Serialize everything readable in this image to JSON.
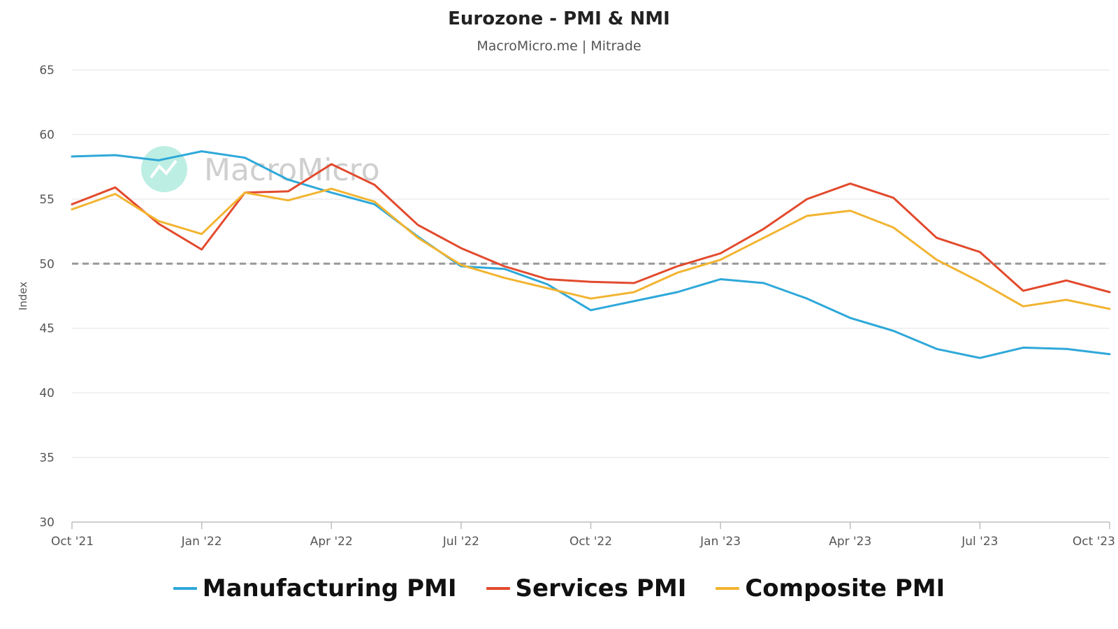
{
  "chart_data": {
    "type": "line",
    "title": "Eurozone - PMI & NMI",
    "subtitle": "MacroMicro.me | Mitrade",
    "watermark": "MacroMicro",
    "ylabel": "Index",
    "xlabel": "",
    "ylim": [
      30,
      65
    ],
    "yticks": [
      "30",
      "35",
      "40",
      "45",
      "50",
      "55",
      "60",
      "65"
    ],
    "reference_line": {
      "value": 50,
      "style": "dashed",
      "color": "#999999"
    },
    "categories": [
      "Oct '21",
      "Nov '21",
      "Dec '21",
      "Jan '22",
      "Feb '22",
      "Mar '22",
      "Apr '22",
      "May '22",
      "Jun '22",
      "Jul '22",
      "Aug '22",
      "Sep '22",
      "Oct '22",
      "Nov '22",
      "Dec '22",
      "Jan '23",
      "Feb '23",
      "Mar '23",
      "Apr '23",
      "May '23",
      "Jun '23",
      "Jul '23",
      "Aug '23",
      "Sep '23",
      "Oct '23"
    ],
    "xtick_labels": [
      "Oct '21",
      "Jan '22",
      "Apr '22",
      "Jul '22",
      "Oct '22",
      "Jan '23",
      "Apr '23",
      "Jul '23",
      "Oct '23"
    ],
    "series": [
      {
        "name": "Manufacturing PMI",
        "color": "#2ea8d9",
        "values": [
          58.3,
          58.4,
          58.0,
          58.7,
          58.2,
          56.5,
          55.5,
          54.6,
          52.1,
          49.8,
          49.6,
          48.4,
          46.4,
          47.1,
          47.8,
          48.8,
          48.5,
          47.3,
          45.8,
          44.8,
          43.4,
          42.7,
          43.5,
          43.4,
          43.0
        ]
      },
      {
        "name": "Services PMI",
        "color": "#e24a2d",
        "values": [
          54.6,
          55.9,
          53.1,
          51.1,
          55.5,
          55.6,
          57.7,
          56.1,
          53.0,
          51.2,
          49.8,
          48.8,
          48.6,
          48.5,
          49.8,
          50.8,
          52.7,
          55.0,
          56.2,
          55.1,
          52.0,
          50.9,
          47.9,
          48.7,
          47.8
        ]
      },
      {
        "name": "Composite PMI",
        "color": "#f2b431",
        "values": [
          54.2,
          55.4,
          53.3,
          52.3,
          55.5,
          54.9,
          55.8,
          54.8,
          52.0,
          49.9,
          48.9,
          48.1,
          47.3,
          47.8,
          49.3,
          50.3,
          52.0,
          53.7,
          54.1,
          52.8,
          50.3,
          48.6,
          46.7,
          47.2,
          46.5
        ]
      }
    ],
    "grid": true,
    "legend_position": "bottom"
  }
}
